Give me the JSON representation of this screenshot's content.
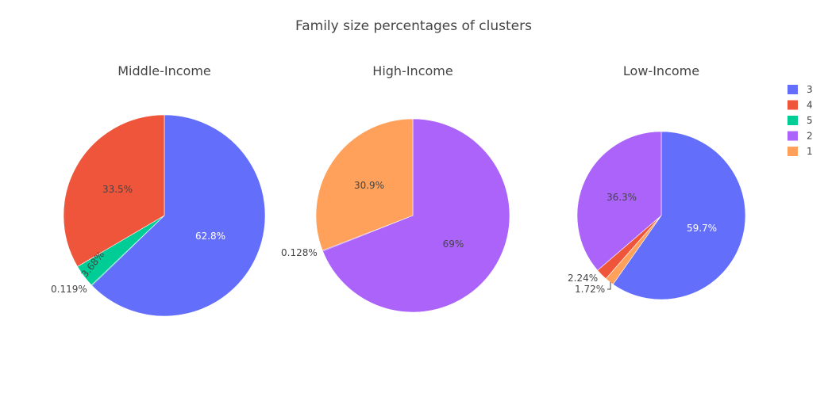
{
  "chart_data": {
    "type": "pie",
    "title": "Family size percentages of clusters",
    "legend_position": "top-right",
    "legend": [
      {
        "label": "3",
        "color": "#636efa"
      },
      {
        "label": "4",
        "color": "#ef553b"
      },
      {
        "label": "5",
        "color": "#00cc96"
      },
      {
        "label": "2",
        "color": "#ab63fa"
      },
      {
        "label": "1",
        "color": "#ffa15a"
      }
    ],
    "pies": [
      {
        "title": "Middle-Income",
        "slices": [
          {
            "label": "3",
            "value": 62.8,
            "text": "62.8%",
            "color": "#636efa"
          },
          {
            "label": "5",
            "value": 0.119,
            "text": "0.119%",
            "color": "#00cc96"
          },
          {
            "label": "4",
            "value": 3.68,
            "text": "3.68%",
            "color": "#00cc96"
          },
          {
            "label": "4",
            "value": 33.5,
            "text": "33.5%",
            "color": "#ef553b"
          }
        ]
      },
      {
        "title": "High-Income",
        "slices": [
          {
            "label": "2",
            "value": 69,
            "text": "69%",
            "color": "#ab63fa"
          },
          {
            "label": "1",
            "value": 0.128,
            "text": "0.128%",
            "color": "#ab63fa"
          },
          {
            "label": "1",
            "value": 30.9,
            "text": "30.9%",
            "color": "#ffa15a"
          }
        ]
      },
      {
        "title": "Low-Income",
        "slices": [
          {
            "label": "3",
            "value": 59.7,
            "text": "59.7%",
            "color": "#636efa"
          },
          {
            "label": "1",
            "value": 1.72,
            "text": "1.72%",
            "color": "#ffa15a"
          },
          {
            "label": "4",
            "value": 2.24,
            "text": "2.24%",
            "color": "#ef553b"
          },
          {
            "label": "2",
            "value": 36.3,
            "text": "36.3%",
            "color": "#ab63fa"
          }
        ]
      }
    ]
  }
}
